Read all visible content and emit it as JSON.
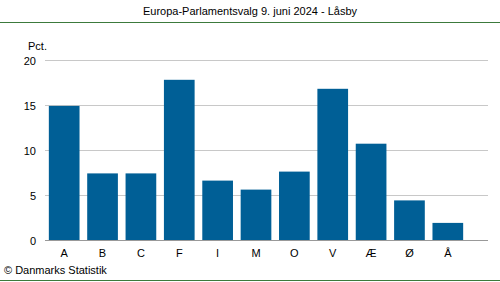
{
  "chart_data": {
    "type": "bar",
    "title": "Europa-Parlamentsvalg 9. juni 2024 - Låsby",
    "y_label": "Pct.",
    "source": "© Danmarks Statistik",
    "categories": [
      "A",
      "B",
      "C",
      "F",
      "I",
      "M",
      "O",
      "V",
      "Æ",
      "Ø",
      "Å"
    ],
    "values": [
      14.9,
      7.4,
      7.4,
      17.8,
      6.6,
      5.6,
      7.6,
      16.8,
      10.7,
      4.4,
      1.9
    ],
    "color": "#005f96",
    "ylim": [
      0,
      20
    ],
    "yticks": [
      0,
      5,
      10,
      15,
      20
    ],
    "grid": true
  }
}
